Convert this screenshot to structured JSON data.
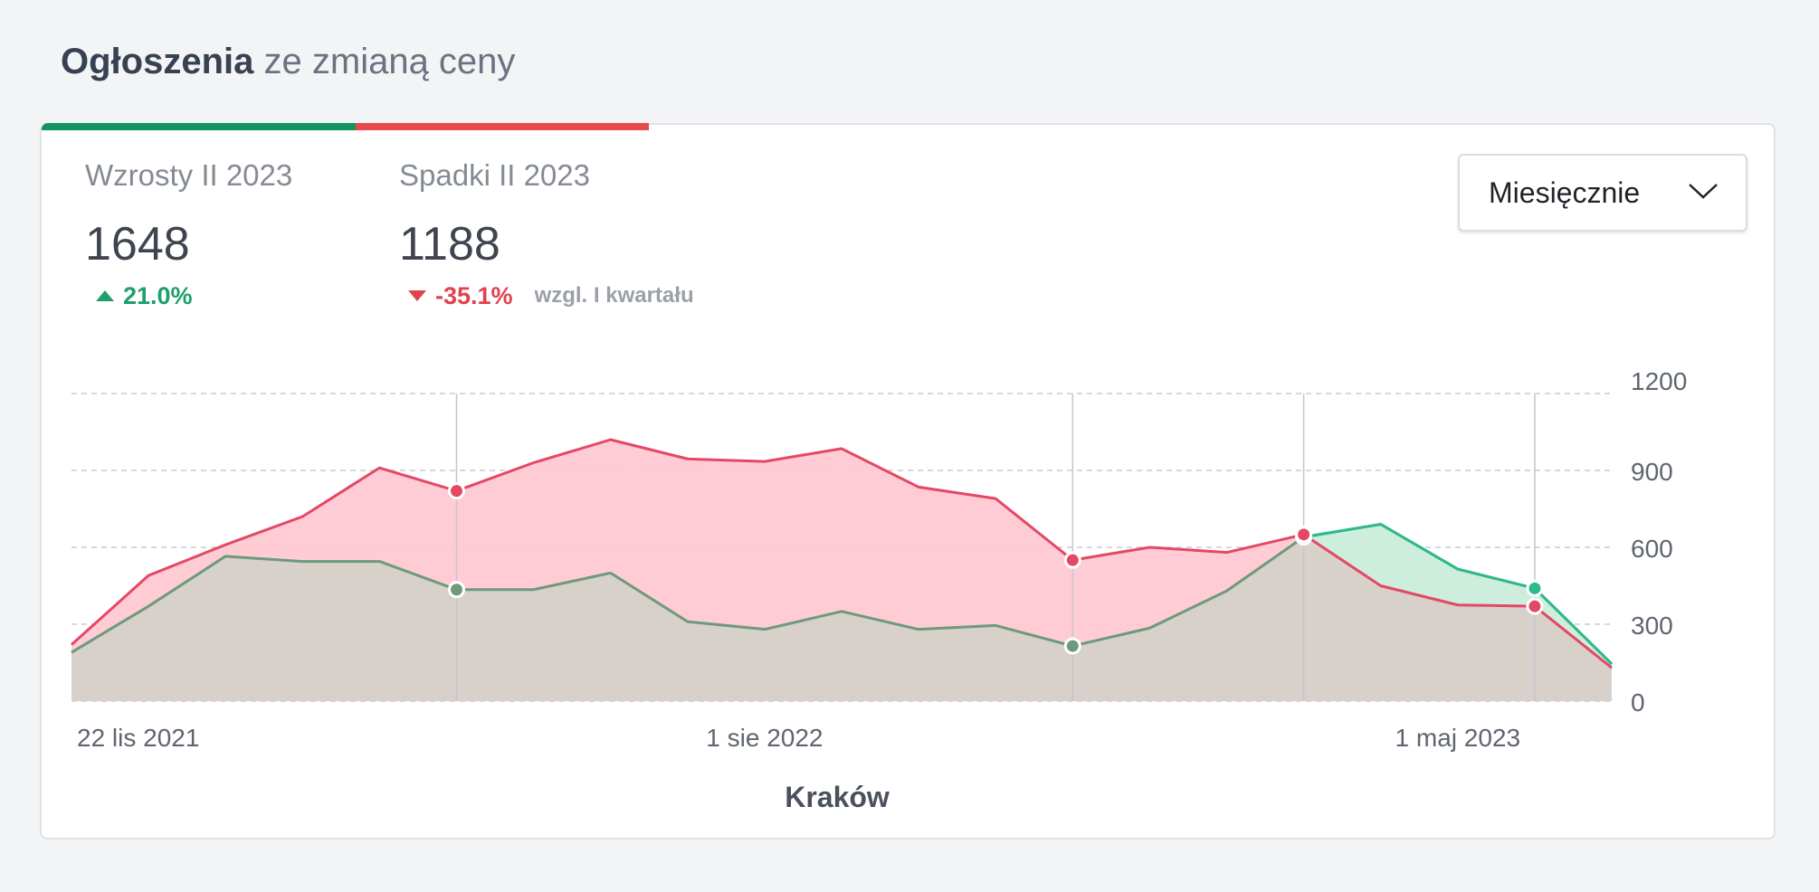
{
  "header": {
    "title_strong": "Ogłoszenia",
    "title_rest": "ze zmianą ceny"
  },
  "colors": {
    "increase": "#1f9e6e",
    "decrease": "#e0424f",
    "bar_green": "#14935f",
    "bar_red": "#e5484d",
    "increase_line": "#2dba8a",
    "increase_line_muted": "#6d9a7b",
    "decrease_line": "#e44865",
    "decrease_fill": "#ffc7d0",
    "increase_fill": "#c8ecd9",
    "overlap_fill": "#d8cfc9"
  },
  "stats": {
    "increases": {
      "label": "Wzrosty II 2023",
      "value": "1648",
      "change": "21.0%",
      "direction": "up"
    },
    "decreases": {
      "label": "Spadki II 2023",
      "value": "1188",
      "change": "-35.1%",
      "direction": "down"
    },
    "compare_note": "wzgl. I kwartału"
  },
  "controls": {
    "period_select": {
      "value": "Miesięcznie",
      "icon": "chevron-down-icon"
    }
  },
  "chart_data": {
    "type": "area",
    "xlabel": "Kraków",
    "ylabel": "",
    "ylim": [
      0,
      1200
    ],
    "yticks": [
      "1200",
      "900",
      "600",
      "300",
      "0"
    ],
    "x_tick_labels": [
      {
        "label": "22 lis 2021",
        "index": 0
      },
      {
        "label": "1 sie 2022",
        "index": 9
      },
      {
        "label": "1 maj 2023",
        "index": 18
      }
    ],
    "y_axis_position": "right",
    "grid": "horizontal-dashed",
    "series": [
      {
        "role": "decreases",
        "values": [
          220,
          490,
          610,
          720,
          910,
          820,
          930,
          1020,
          945,
          935,
          985,
          835,
          790,
          550,
          600,
          580,
          650,
          450,
          375,
          370,
          130
        ],
        "markers": [
          5,
          13,
          16,
          19
        ]
      },
      {
        "role": "increases",
        "values": [
          190,
          370,
          565,
          545,
          545,
          435,
          435,
          500,
          310,
          280,
          350,
          280,
          295,
          215,
          285,
          430,
          640,
          690,
          515,
          440,
          145
        ],
        "markers": [
          5,
          13,
          16,
          19
        ]
      }
    ],
    "vertical_markers": [
      5,
      13,
      16,
      19
    ]
  }
}
